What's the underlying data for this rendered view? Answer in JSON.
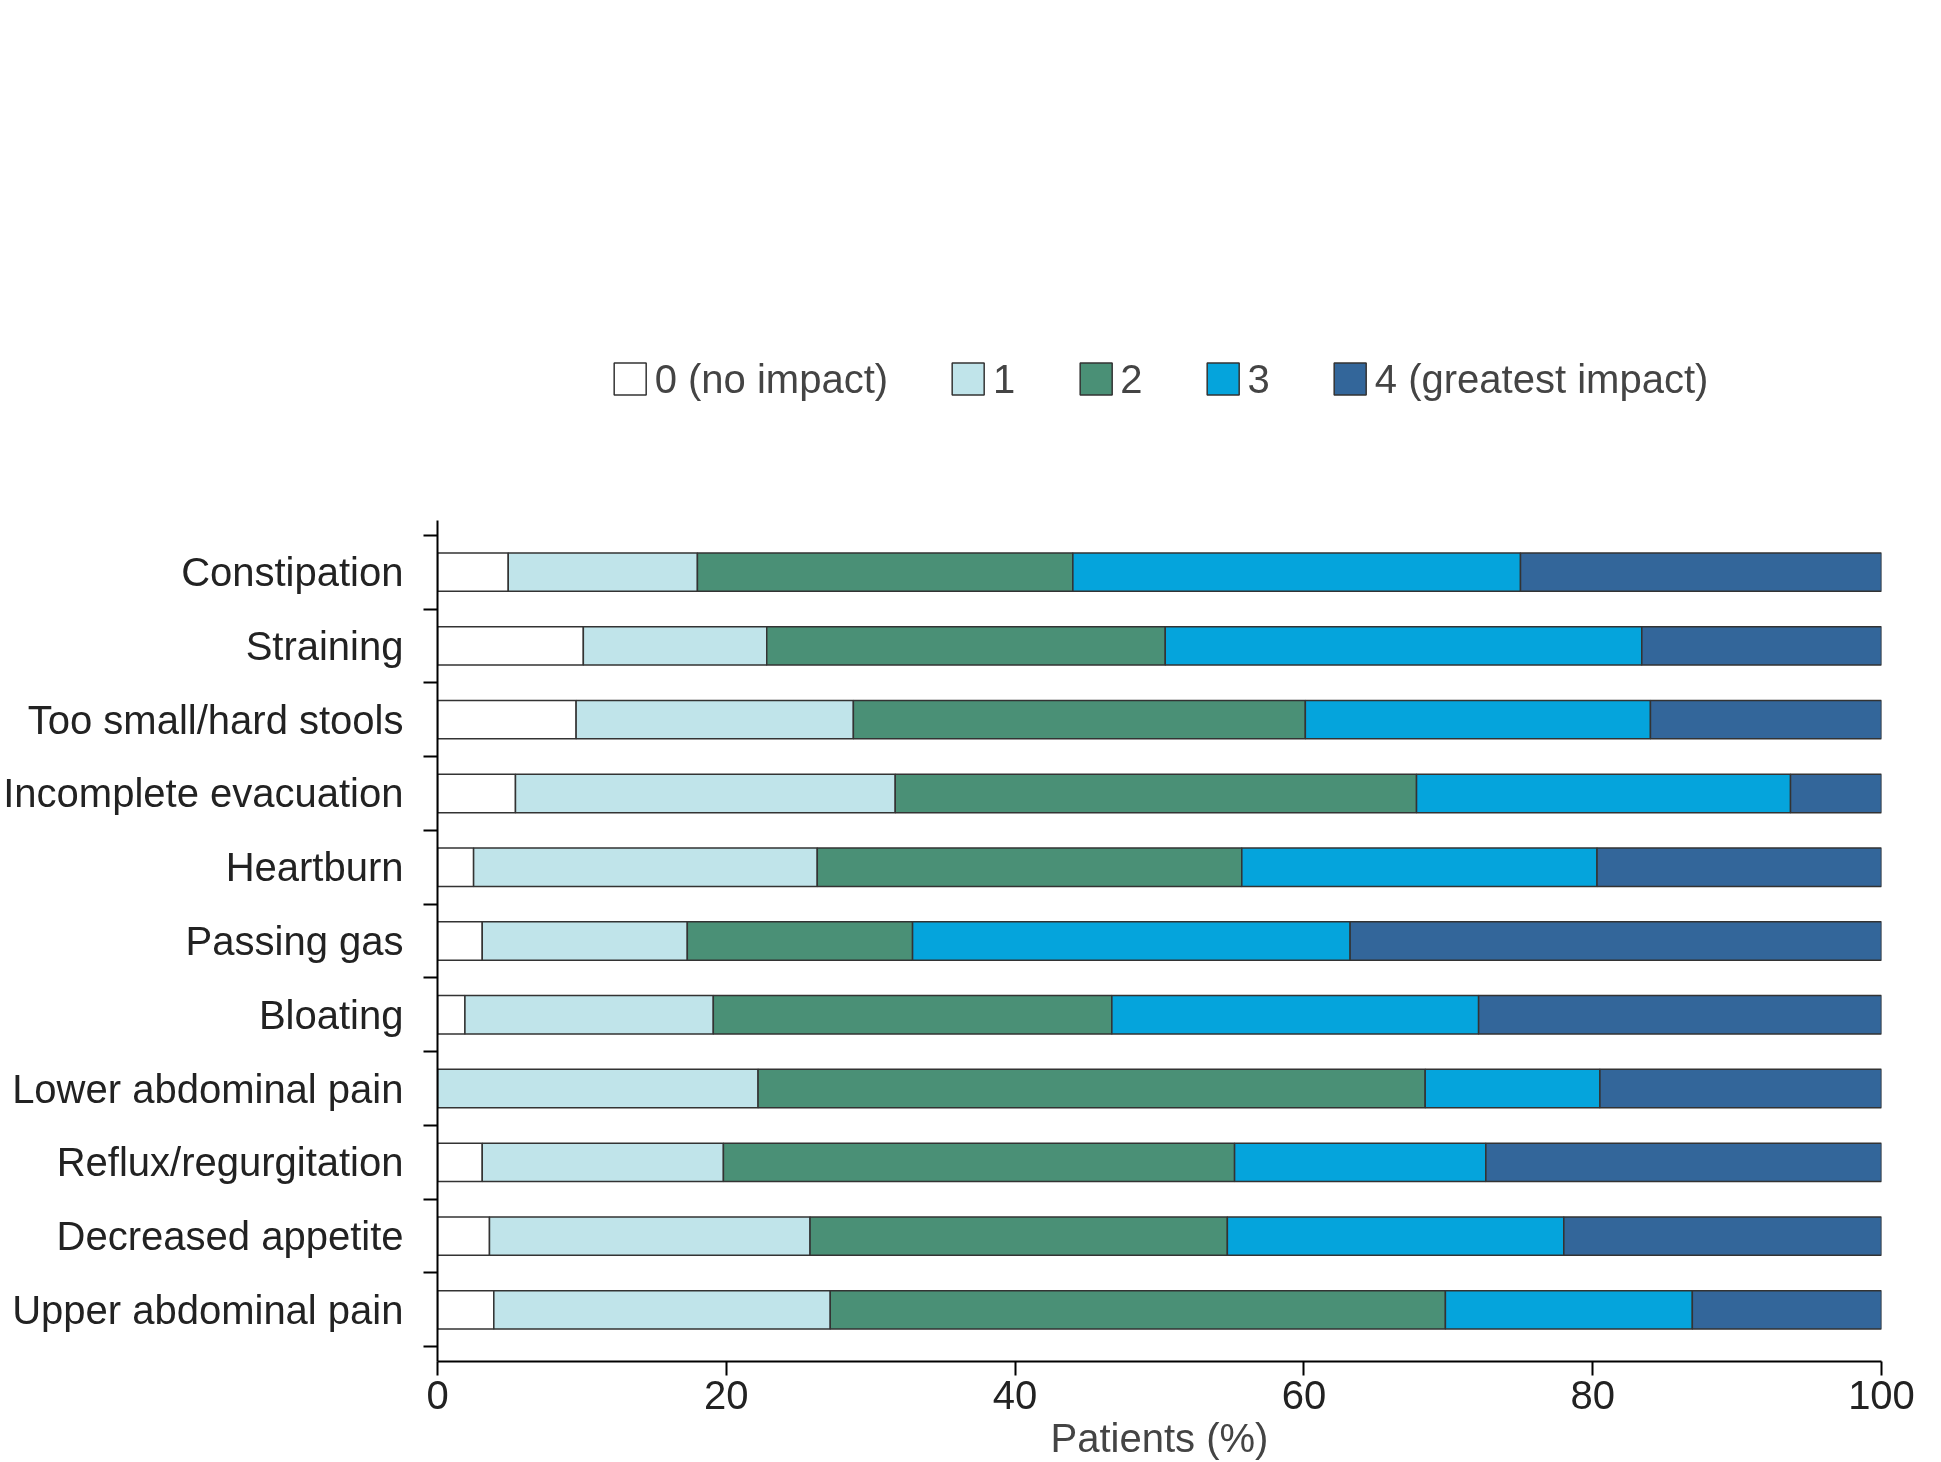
{
  "chart_data": {
    "type": "bar",
    "orientation": "horizontal",
    "stacked": true,
    "xlabel": "Patients (%)",
    "categories": [
      "Constipation",
      "Straining",
      "Too small/hard stools",
      "Incomplete evacuation",
      "Heartburn",
      "Passing gas",
      "Bloating",
      "Lower abdominal pain",
      "Reflux/regurgitation",
      "Decreased appetite",
      "Upper abdominal pain"
    ],
    "series": [
      {
        "name": "0 (no impact)",
        "color": "#ffffff",
        "values": [
          4.9,
          10.1,
          9.6,
          5.4,
          2.5,
          3.1,
          1.9,
          0,
          3.1,
          3.6,
          3.9
        ]
      },
      {
        "name": "1",
        "color": "#c0e4ea",
        "values": [
          13.1,
          12.7,
          19.2,
          26.3,
          23.8,
          14.2,
          17.2,
          22.2,
          16.7,
          22.2,
          23.3
        ]
      },
      {
        "name": "2",
        "color": "#4a9076",
        "values": [
          26.0,
          27.6,
          31.3,
          36.1,
          29.4,
          15.6,
          27.6,
          46.2,
          35.4,
          28.9,
          42.6
        ]
      },
      {
        "name": "3",
        "color": "#05a4dc",
        "values": [
          31.0,
          33.0,
          23.9,
          25.9,
          24.6,
          30.3,
          25.4,
          12.1,
          17.4,
          23.3,
          17.1
        ]
      },
      {
        "name": "4 (greatest impact)",
        "color": "#33669a",
        "values": [
          25.0,
          16.6,
          16.0,
          6.3,
          19.7,
          36.8,
          27.9,
          19.5,
          27.4,
          22.0,
          13.1
        ]
      }
    ],
    "xlim": [
      0,
      100
    ],
    "xticks": [
      0,
      20,
      40,
      60,
      80,
      100
    ],
    "grid": false,
    "legend": "top"
  }
}
